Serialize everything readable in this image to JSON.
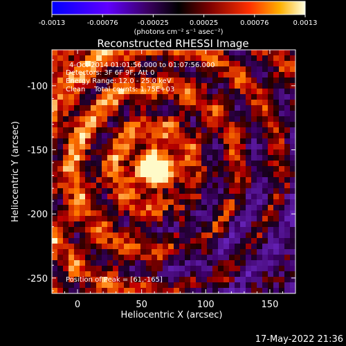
{
  "colorbar": {
    "ticks": [
      "-0.0013",
      "-0.00076",
      "-0.00025",
      "0.00025",
      "0.00076",
      "0.0013"
    ],
    "unit_label": "(photons cm⁻² s⁻¹ asec⁻²)",
    "range": [
      -0.0013,
      0.0013
    ]
  },
  "chart_data": {
    "type": "heatmap",
    "title": "Reconstructed RHESSI Image",
    "xlabel": "Heliocentric X (arcsec)",
    "ylabel": "Heliocentric Y (arcsec)",
    "xlim": [
      -20,
      170
    ],
    "ylim": [
      -262,
      -72
    ],
    "xticks": [
      0,
      50,
      100,
      150
    ],
    "yticks": [
      -100,
      -150,
      -200,
      -250
    ],
    "annotations": [
      "4-Oct-2014 01:01:56.000 to 01:07:56.000",
      "Detectors: 3F 6F 9F, Att 0",
      "Energy Range: 12.0 - 25.0 keV",
      "Clean    Total counts: 1.75E+03"
    ],
    "peak_label": "Position of Peak = [61,-165]",
    "peak": {
      "x": 61,
      "y": -165
    },
    "timestamp": "17-May-2022 21:36"
  },
  "colors": {
    "background": "#000000",
    "text": "#ffffff"
  }
}
